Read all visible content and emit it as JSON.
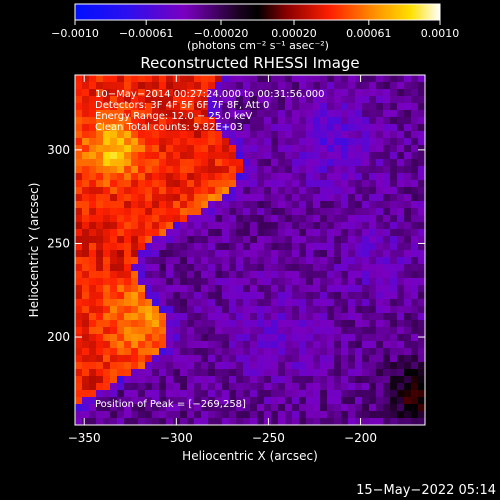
{
  "chart_data": {
    "type": "heatmap",
    "title": "Reconstructed RHESSI Image",
    "xlabel": "Heliocentric X (arcsec)",
    "ylabel": "Heliocentric Y (arcsec)",
    "xlim": [
      -355,
      -165
    ],
    "ylim": [
      153,
      340
    ],
    "x_ticks": [
      -350,
      -300,
      -250,
      -200
    ],
    "x_tick_labels": [
      "−350",
      "−300",
      "−250",
      "−200"
    ],
    "y_ticks": [
      200,
      250,
      300
    ],
    "y_tick_labels": [
      "200",
      "250",
      "300"
    ],
    "colorbar": {
      "range": [
        -0.001,
        0.001
      ],
      "ticks": [
        -0.001,
        -0.00061,
        -0.0002,
        0.0002,
        0.00061,
        0.001
      ],
      "tick_labels": [
        "−0.0010",
        "−0.00061",
        "−0.00020",
        "0.00020",
        "0.00061",
        "0.0010"
      ],
      "label": "(photons cm⁻² s⁻¹ asec⁻²)"
    },
    "annotations": {
      "time": "10−May−2014 00:27:24.000 to 00:31:56.000",
      "detectors": "Detectors: 3F 4F 5F 6F 7F 8F, Att 0",
      "energy": "Energy Range: 12.0 − 25.0 keV",
      "clean": "Clean     Total counts: 9.82E+03",
      "peak": "Position of Peak = [−269,258]"
    },
    "peak": [
      -269,
      258
    ],
    "timestamp": "15−May−2022 05:14"
  }
}
